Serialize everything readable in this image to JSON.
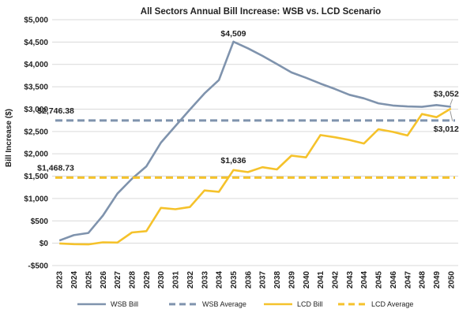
{
  "chart_data": {
    "type": "line",
    "title": "All Sectors Annual Bill Increase: WSB vs. LCD Scenario",
    "ylabel": "Bill Increase ($)",
    "xlabel": "",
    "ylim": [
      -500,
      5000
    ],
    "y_ticks": [
      -500,
      0,
      500,
      1000,
      1500,
      2000,
      2500,
      3000,
      3500,
      4000,
      4500,
      5000
    ],
    "y_tick_labels": [
      "-$500",
      "$0",
      "$500",
      "$1,000",
      "$1,500",
      "$2,000",
      "$2,500",
      "$3,000",
      "$3,500",
      "$4,000",
      "$4,500",
      "$5,000"
    ],
    "grid": true,
    "legend_position": "bottom",
    "x": [
      "2023",
      "2024",
      "2025",
      "2026",
      "2027",
      "2028",
      "2029",
      "2030",
      "2031",
      "2032",
      "2033",
      "2034",
      "2035",
      "2036",
      "2037",
      "2038",
      "2039",
      "2040",
      "2041",
      "2042",
      "2043",
      "2044",
      "2045",
      "2046",
      "2047",
      "2048",
      "2049",
      "2050"
    ],
    "series": [
      {
        "name": "WSB Bill",
        "color": "#7f93ad",
        "style": "solid",
        "values": [
          60,
          180,
          230,
          620,
          1110,
          1440,
          1720,
          2250,
          2620,
          2990,
          3350,
          3650,
          4509,
          4360,
          4190,
          4010,
          3820,
          3700,
          3570,
          3450,
          3320,
          3240,
          3130,
          3080,
          3060,
          3050,
          3090,
          3052
        ]
      },
      {
        "name": "WSB Average",
        "color": "#7f93ad",
        "style": "dashed",
        "values": [
          2746.38,
          2746.38,
          2746.38,
          2746.38,
          2746.38,
          2746.38,
          2746.38,
          2746.38,
          2746.38,
          2746.38,
          2746.38,
          2746.38,
          2746.38,
          2746.38,
          2746.38,
          2746.38,
          2746.38,
          2746.38,
          2746.38,
          2746.38,
          2746.38,
          2746.38,
          2746.38,
          2746.38,
          2746.38,
          2746.38,
          2746.38,
          2746.38
        ]
      },
      {
        "name": "LCD Bill",
        "color": "#f5c22b",
        "style": "solid",
        "values": [
          -5,
          -20,
          -25,
          20,
          15,
          240,
          270,
          790,
          760,
          810,
          1180,
          1150,
          1636,
          1590,
          1700,
          1650,
          1960,
          1920,
          2420,
          2370,
          2310,
          2230,
          2550,
          2490,
          2410,
          2890,
          2820,
          3012
        ]
      },
      {
        "name": "LCD Average",
        "color": "#f5c22b",
        "style": "dashed",
        "values": [
          1468.73,
          1468.73,
          1468.73,
          1468.73,
          1468.73,
          1468.73,
          1468.73,
          1468.73,
          1468.73,
          1468.73,
          1468.73,
          1468.73,
          1468.73,
          1468.73,
          1468.73,
          1468.73,
          1468.73,
          1468.73,
          1468.73,
          1468.73,
          1468.73,
          1468.73,
          1468.73,
          1468.73,
          1468.73,
          1468.73,
          1468.73,
          1468.73
        ]
      }
    ],
    "annotations": [
      {
        "text": "$4,509",
        "x": "2035",
        "y": 4509
      },
      {
        "text": "$1,636",
        "x": "2035",
        "y": 1636
      },
      {
        "text": "$2,746.38",
        "x": "2023",
        "y": 2746.38
      },
      {
        "text": "$1,468.73",
        "x": "2023",
        "y": 1468.73
      },
      {
        "text": "$3,052",
        "x": "2050",
        "y": 3052
      },
      {
        "text": "$3,012",
        "x": "2050",
        "y": 3012
      }
    ]
  }
}
